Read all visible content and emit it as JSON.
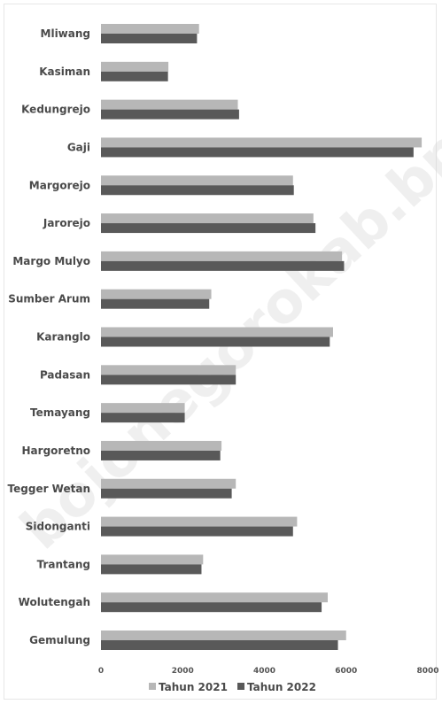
{
  "chart_data": {
    "type": "bar",
    "orientation": "horizontal",
    "categories": [
      "Mliwang",
      "Kasiman",
      "Kedungrejo",
      "Gaji",
      "Margorejo",
      "Jarorejo",
      "Margo Mulyo",
      "Sumber Arum",
      "Karanglo",
      "Padasan",
      "Temayang",
      "Hargoretno",
      "Tegger Wetan",
      "Sidonganti",
      "Trantang",
      "Wolutengah",
      "Gemulung"
    ],
    "series": [
      {
        "name": "Tahun 2021",
        "color": "#b7b7b7",
        "values": [
          2400,
          1650,
          3350,
          7850,
          4700,
          5200,
          5900,
          2700,
          5680,
          3300,
          2050,
          2950,
          3300,
          4800,
          2500,
          5550,
          6000
        ]
      },
      {
        "name": "Tahun 2022",
        "color": "#595959",
        "values": [
          2350,
          1640,
          3380,
          7650,
          4720,
          5250,
          5950,
          2650,
          5600,
          3300,
          2050,
          2920,
          3200,
          4700,
          2460,
          5400,
          5800
        ]
      }
    ],
    "xlim": [
      0,
      8000
    ],
    "xticks": [
      "0",
      "2000",
      "4000",
      "6000",
      "8000"
    ],
    "grid": false,
    "legend_position": "bottom",
    "watermark": "bojonegorokab.bps.go.id"
  }
}
